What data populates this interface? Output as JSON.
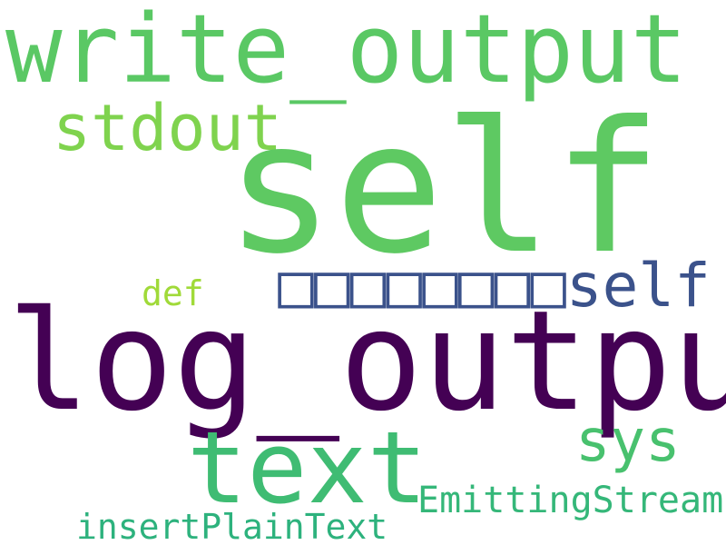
{
  "words": {
    "write_output": {
      "text": "write_output",
      "color": "#5ac864"
    },
    "stdout": {
      "text": "stdout",
      "color": "#7fd34e"
    },
    "self_large": {
      "text": "self",
      "color": "#5ec962"
    },
    "def": {
      "text": "def",
      "color": "#a0da39"
    },
    "boxes_self": {
      "text": "□□□□□□□□self",
      "color": "#3b528b"
    },
    "log_output": {
      "text": "log_output",
      "color": "#440154"
    },
    "sys": {
      "text": "sys",
      "color": "#48c16e"
    },
    "text": {
      "text": "text",
      "color": "#3fbc73"
    },
    "emitting_stream": {
      "text": "EmittingStream",
      "color": "#35b779"
    },
    "insert_plain_text": {
      "text": "insertPlainText",
      "color": "#2db27d"
    }
  }
}
